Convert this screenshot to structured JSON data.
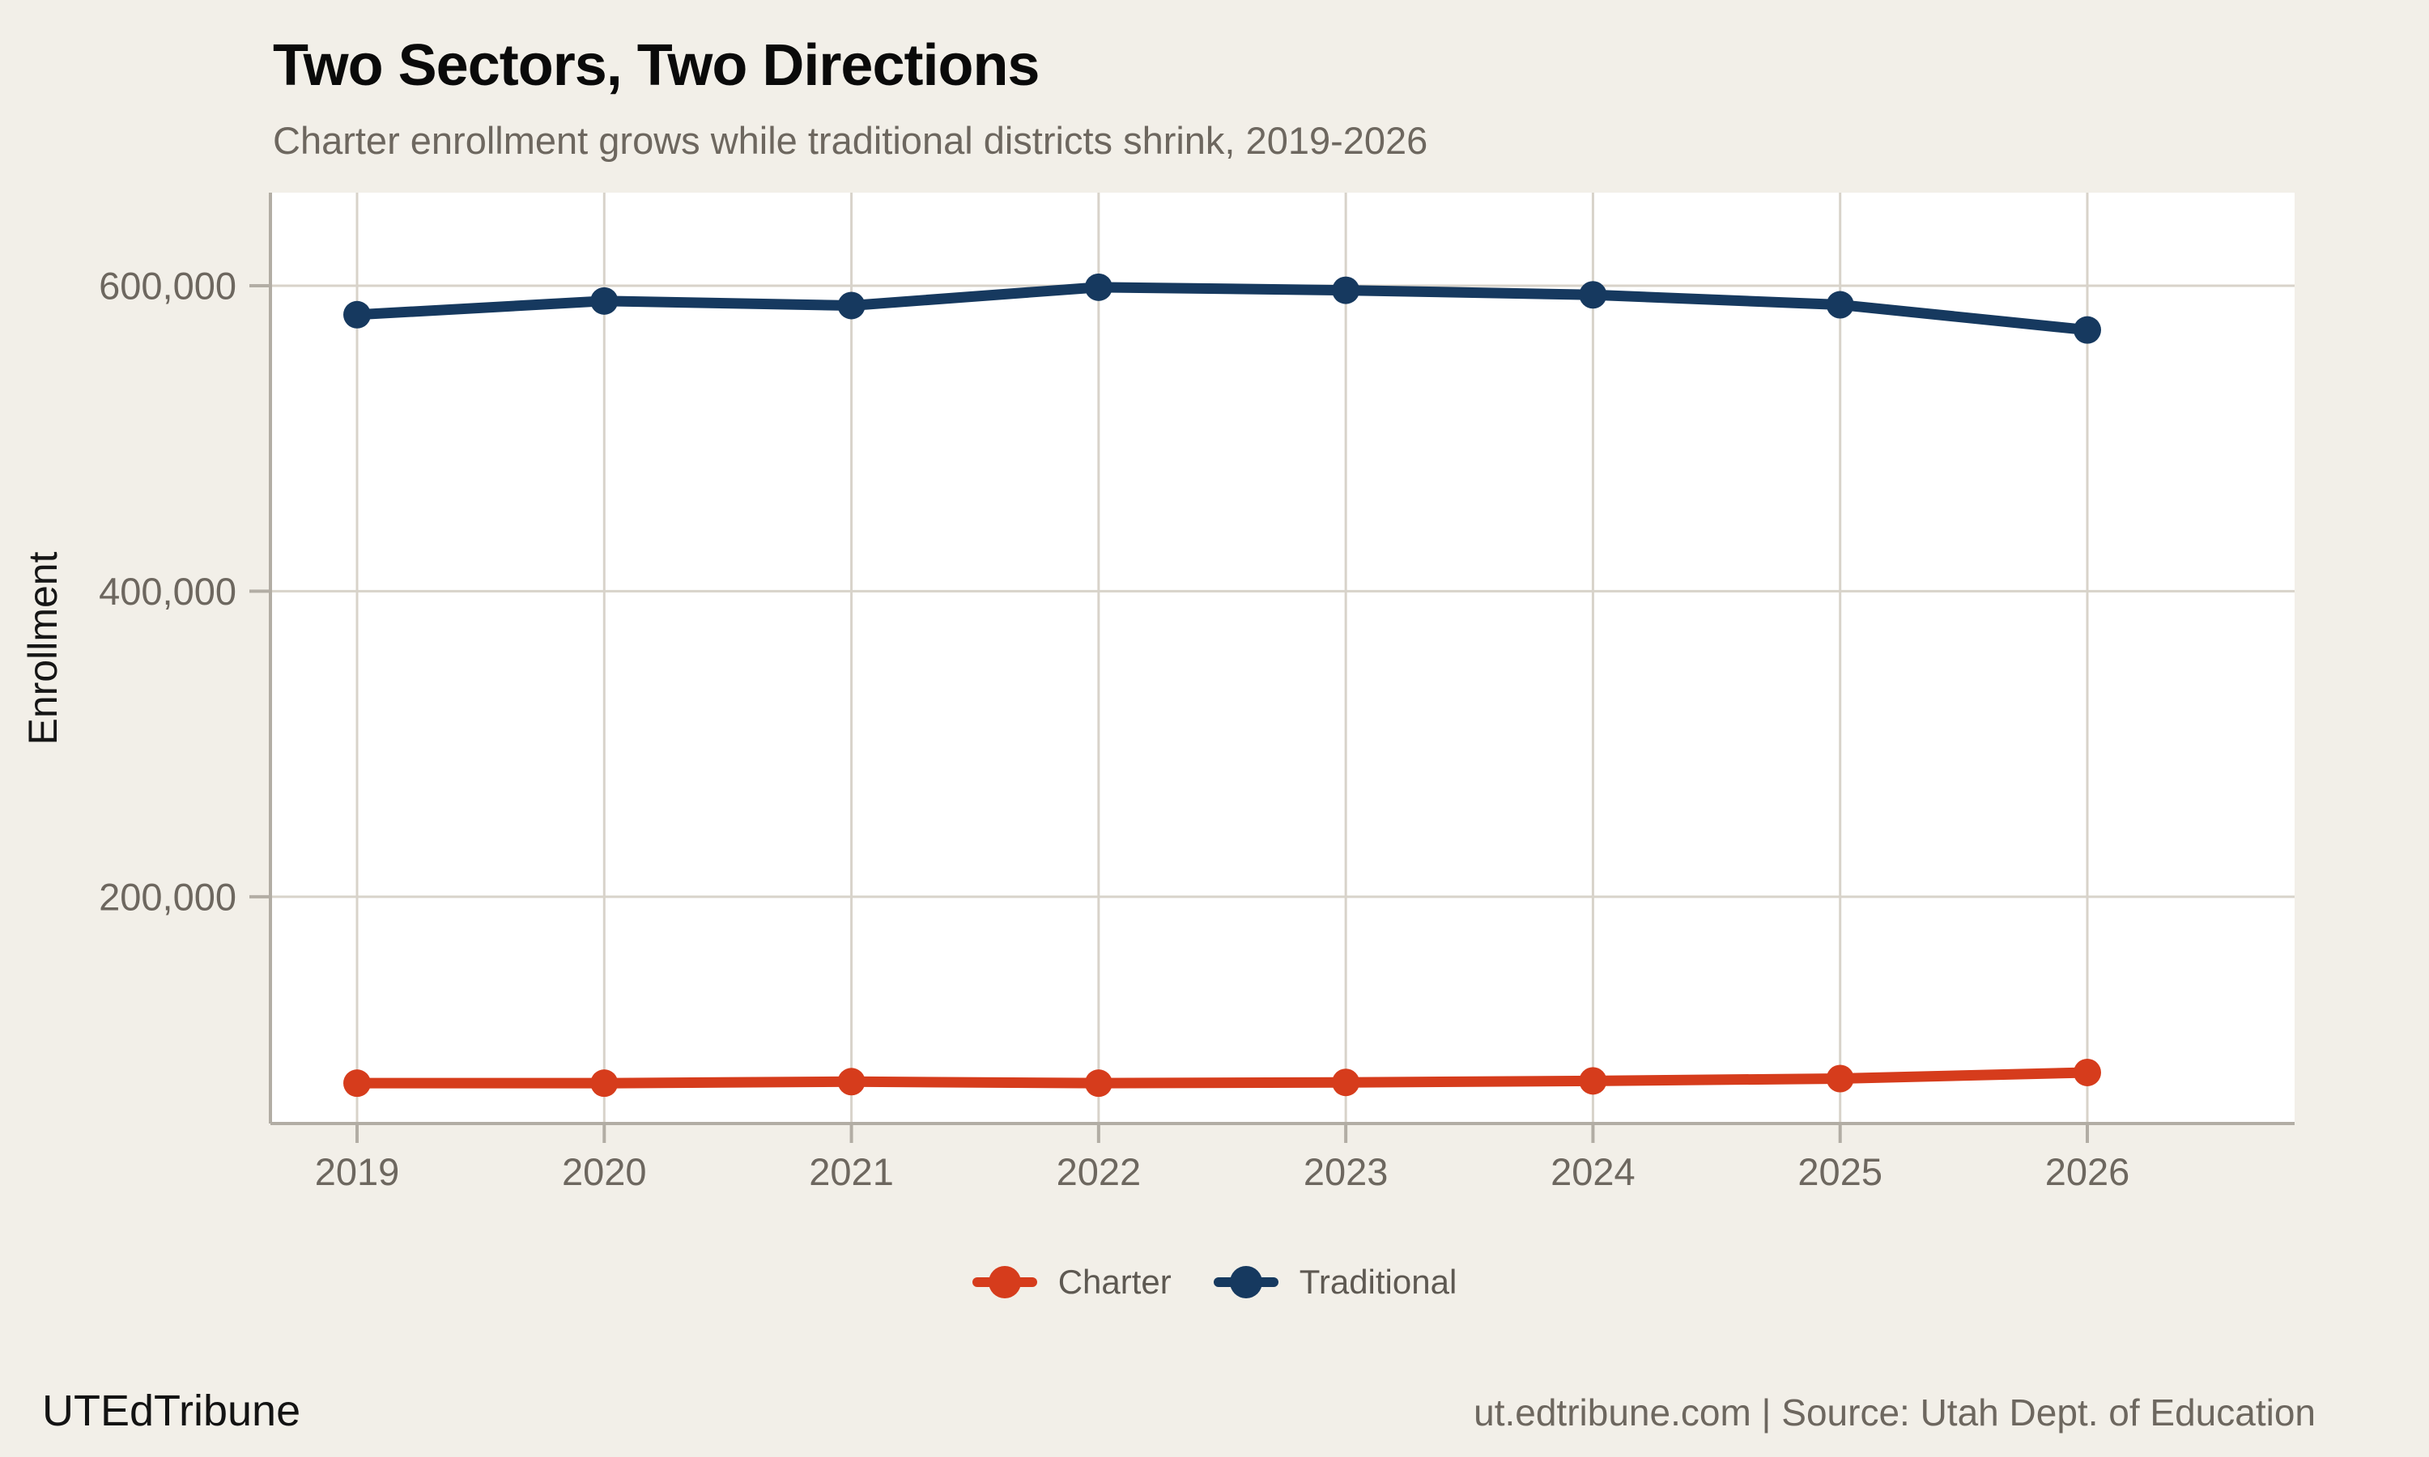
{
  "header": {
    "title": "Two Sectors, Two Directions",
    "subtitle": "Charter enrollment grows while traditional districts shrink, 2019-2026"
  },
  "footer": {
    "brand": "UTEdTribune",
    "attribution": "ut.edtribune.com | Source: Utah Dept. of Education"
  },
  "colors": {
    "background": "#f2efe8",
    "plot_background": "#ffffff",
    "gridline": "#d8d3ca",
    "spine": "#b2ada4",
    "tick_label": "#6d675f",
    "title": "#0a0a0a",
    "subtitle": "#6d675f",
    "legend_label": "#5e5952",
    "charter": "#d63c1c",
    "traditional": "#16395f"
  },
  "chart_data": {
    "type": "line",
    "title": "Two Sectors, Two Directions",
    "subtitle": "Charter enrollment grows while traditional districts shrink, 2019-2026",
    "xlabel": "",
    "ylabel": "Enrollment",
    "x": [
      "2019",
      "2020",
      "2021",
      "2022",
      "2023",
      "2024",
      "2025",
      "2026"
    ],
    "series": [
      {
        "name": "Charter",
        "color": "#d63c1c",
        "values": [
          78000,
          78000,
          79000,
          78000,
          78500,
          79500,
          81000,
          85000
        ]
      },
      {
        "name": "Traditional",
        "color": "#16395f",
        "values": [
          581000,
          590000,
          587000,
          599000,
          597000,
          594000,
          587500,
          571000
        ]
      }
    ],
    "y_ticks": [
      {
        "value": 200000,
        "label": "200,000"
      },
      {
        "value": 400000,
        "label": "400,000"
      },
      {
        "value": 600000,
        "label": "600,000"
      }
    ],
    "ylim": [
      51600,
      660900
    ],
    "grid": true,
    "legend_position": "bottom"
  }
}
